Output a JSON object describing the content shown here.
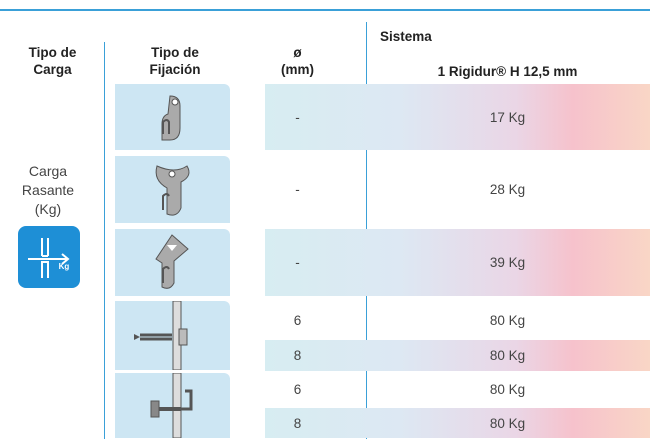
{
  "headers": {
    "load_type": "Tipo de\nCarga",
    "fixing_type": "Tipo de\nFijación",
    "diameter": "ø\n(mm)",
    "system": "Sistema",
    "system_name": "1 Rigidur® H 12,5 mm"
  },
  "load": {
    "label": "Carga\nRasante\n(Kg)",
    "icon_label": "Kg"
  },
  "rows": [
    {
      "diameter": "-",
      "load": "17 Kg"
    },
    {
      "diameter": "-",
      "load": "28 Kg"
    },
    {
      "diameter": "-",
      "load": "39 Kg"
    },
    {
      "diameter": "6",
      "load": "80 Kg"
    },
    {
      "diameter": "8",
      "load": "80 Kg"
    },
    {
      "diameter": "6",
      "load": "80 Kg"
    },
    {
      "diameter": "8",
      "load": "80 Kg"
    }
  ]
}
